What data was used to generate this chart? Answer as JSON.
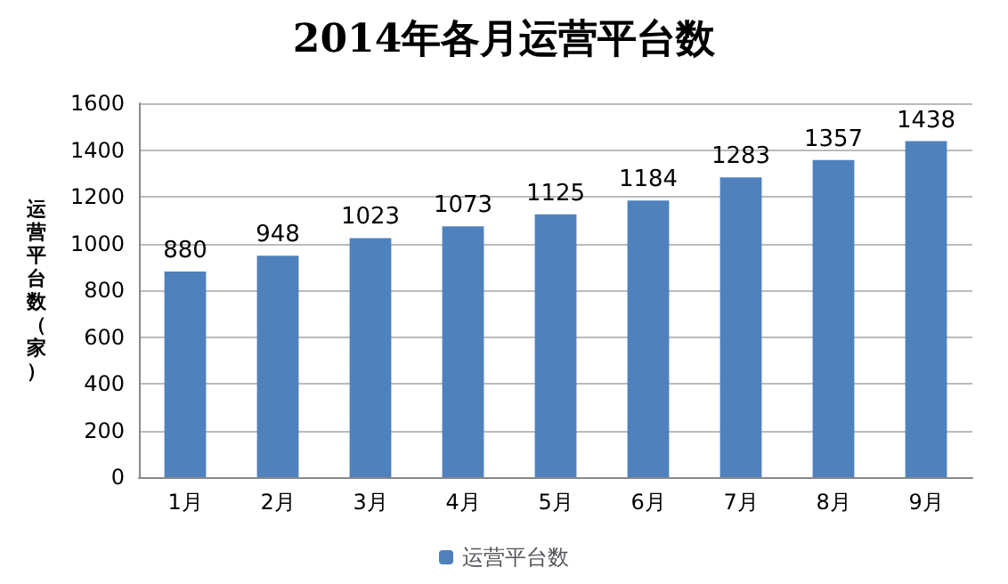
{
  "chart_data": {
    "type": "bar",
    "title": "2014年各月运营平台数",
    "ylabel": "运营平台数（家）",
    "categories": [
      "1月",
      "2月",
      "3月",
      "4月",
      "5月",
      "6月",
      "7月",
      "8月",
      "9月"
    ],
    "series": [
      {
        "name": "运营平台数",
        "color": "#4f81bd",
        "values": [
          880,
          948,
          1023,
          1073,
          1125,
          1184,
          1283,
          1357,
          1438
        ]
      }
    ],
    "ylim": [
      0,
      1600
    ],
    "yticks": [
      0,
      200,
      400,
      600,
      800,
      1000,
      1200,
      1400,
      1600
    ],
    "grid": "y",
    "legend": "bottom",
    "data_labels": true
  }
}
